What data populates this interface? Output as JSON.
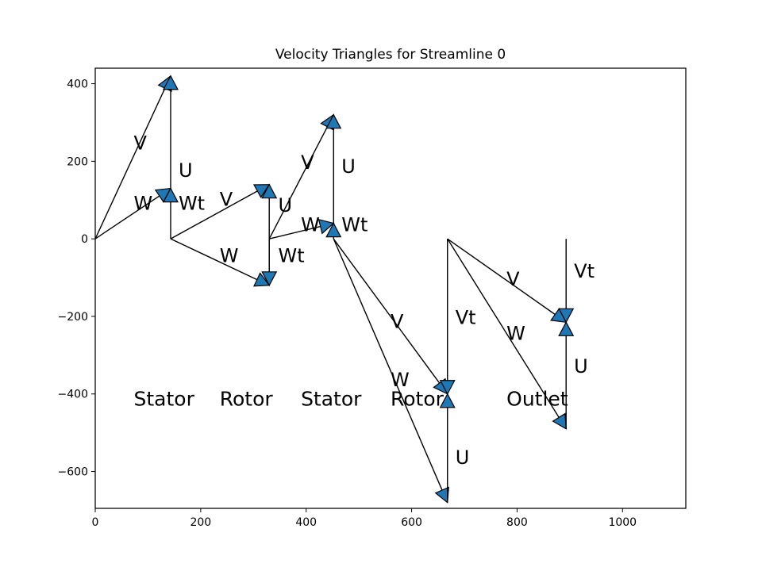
{
  "chart_data": {
    "type": "line",
    "title": "Velocity Triangles for Streamline 0",
    "xlabel": "",
    "ylabel": "",
    "xlim": [
      0,
      1120
    ],
    "ylim": [
      -695,
      440
    ],
    "xticks": [
      0,
      200,
      400,
      600,
      800,
      1000
    ],
    "yticks": [
      400,
      200,
      0,
      -200,
      -400,
      -600
    ],
    "xtick_labels": [
      "0",
      "200",
      "400",
      "600",
      "800",
      "1000"
    ],
    "ytick_labels": [
      "400",
      "200",
      "0",
      "−200",
      "−400",
      "−600"
    ],
    "grid": false,
    "line_color": "#000000",
    "arrow_color": "#1f77b4",
    "vectors": [
      {
        "label": "V",
        "from": [
          0,
          0
        ],
        "to": [
          143,
          420
        ]
      },
      {
        "label": "W",
        "from": [
          0,
          0
        ],
        "to": [
          143,
          130
        ]
      },
      {
        "label": "U",
        "from": [
          143,
          130
        ],
        "to": [
          143,
          420
        ]
      },
      {
        "label": "Wt",
        "from": [
          143,
          0
        ],
        "to": [
          143,
          130
        ]
      },
      {
        "label": "V",
        "from": [
          143,
          0
        ],
        "to": [
          330,
          140
        ]
      },
      {
        "label": "W",
        "from": [
          143,
          0
        ],
        "to": [
          330,
          -120
        ]
      },
      {
        "label": "U",
        "from": [
          330,
          -120
        ],
        "to": [
          330,
          140
        ]
      },
      {
        "label": "Wt",
        "from": [
          330,
          0
        ],
        "to": [
          330,
          -120
        ]
      },
      {
        "label": "V",
        "from": [
          330,
          0
        ],
        "to": [
          452,
          320
        ]
      },
      {
        "label": "W",
        "from": [
          330,
          0
        ],
        "to": [
          452,
          40
        ]
      },
      {
        "label": "U",
        "from": [
          452,
          40
        ],
        "to": [
          452,
          320
        ]
      },
      {
        "label": "Wt",
        "from": [
          452,
          0
        ],
        "to": [
          452,
          40
        ]
      },
      {
        "label": "V",
        "from": [
          452,
          0
        ],
        "to": [
          668,
          -400
        ]
      },
      {
        "label": "W",
        "from": [
          452,
          0
        ],
        "to": [
          668,
          -680
        ]
      },
      {
        "label": "U",
        "from": [
          668,
          -680
        ],
        "to": [
          668,
          -400
        ]
      },
      {
        "label": "Vt",
        "from": [
          668,
          0
        ],
        "to": [
          668,
          -400
        ]
      },
      {
        "label": "V",
        "from": [
          668,
          0
        ],
        "to": [
          893,
          -215
        ]
      },
      {
        "label": "W",
        "from": [
          668,
          0
        ],
        "to": [
          893,
          -490
        ]
      },
      {
        "label": "U",
        "from": [
          893,
          -490
        ],
        "to": [
          893,
          -215
        ]
      },
      {
        "label": "Vt",
        "from": [
          893,
          0
        ],
        "to": [
          893,
          -215
        ]
      }
    ],
    "vector_labels": [
      {
        "text": "V",
        "at": [
          73,
          230
        ]
      },
      {
        "text": "W",
        "at": [
          73,
          75
        ]
      },
      {
        "text": "U",
        "at": [
          158,
          160
        ]
      },
      {
        "text": "Wt",
        "at": [
          158,
          75
        ]
      },
      {
        "text": "V",
        "at": [
          236,
          85
        ]
      },
      {
        "text": "W",
        "at": [
          236,
          -60
        ]
      },
      {
        "text": "U",
        "at": [
          347,
          70
        ]
      },
      {
        "text": "Wt",
        "at": [
          347,
          -60
        ]
      },
      {
        "text": "V",
        "at": [
          390,
          180
        ]
      },
      {
        "text": "W",
        "at": [
          390,
          20
        ]
      },
      {
        "text": "U",
        "at": [
          467,
          170
        ]
      },
      {
        "text": "Wt",
        "at": [
          467,
          20
        ]
      },
      {
        "text": "V",
        "at": [
          560,
          -230
        ]
      },
      {
        "text": "W",
        "at": [
          560,
          -380
        ]
      },
      {
        "text": "U",
        "at": [
          683,
          -580
        ]
      },
      {
        "text": "Vt",
        "at": [
          683,
          -220
        ]
      },
      {
        "text": "V",
        "at": [
          780,
          -120
        ]
      },
      {
        "text": "W",
        "at": [
          780,
          -260
        ]
      },
      {
        "text": "U",
        "at": [
          908,
          -345
        ]
      },
      {
        "text": "Vt",
        "at": [
          908,
          -100
        ]
      }
    ],
    "annotations": [
      {
        "text": "Stator",
        "at": [
          73,
          -430
        ]
      },
      {
        "text": "Rotor",
        "at": [
          236,
          -430
        ]
      },
      {
        "text": "Stator",
        "at": [
          390,
          -430
        ]
      },
      {
        "text": "Rotor",
        "at": [
          560,
          -430
        ]
      },
      {
        "text": "Outlet",
        "at": [
          780,
          -430
        ]
      }
    ]
  }
}
